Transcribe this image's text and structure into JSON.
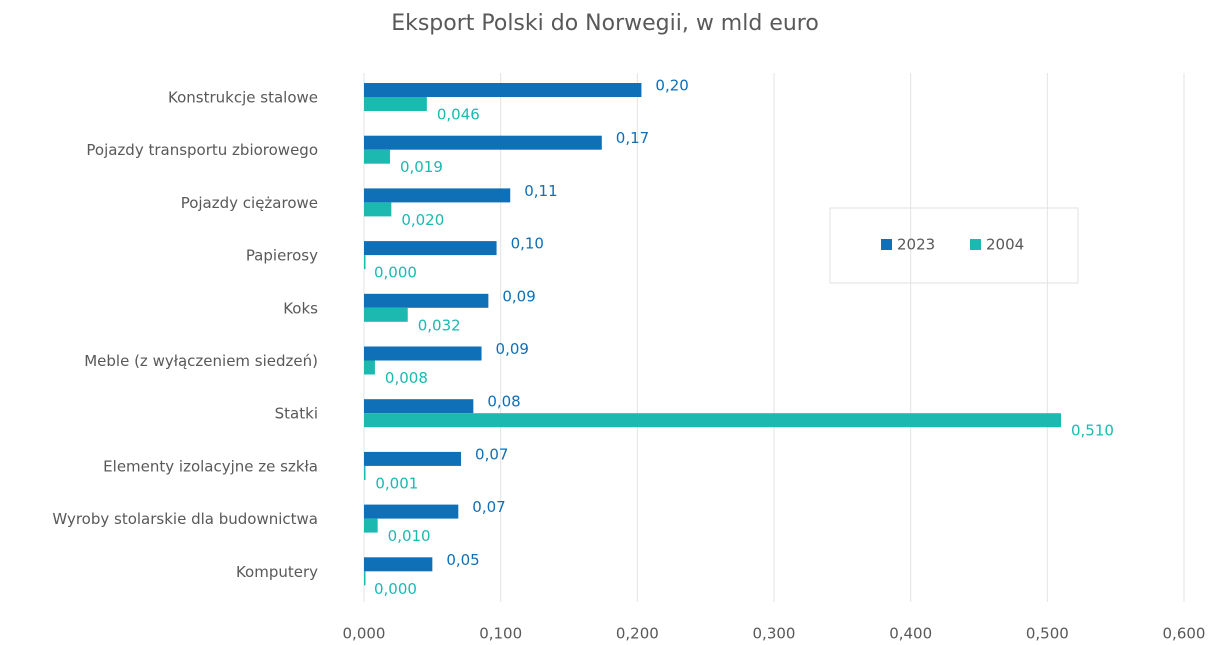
{
  "chart_data": {
    "type": "bar",
    "orientation": "horizontal",
    "title": "Eksport Polski do Norwegii, w mld euro",
    "categories": [
      "Konstrukcje stalowe",
      "Pojazdy transportu zbiorowego",
      "Pojazdy ciężarowe",
      "Papierosy",
      "Koks",
      "Meble (z wyłączeniem siedzeń)",
      "Statki",
      "Elementy izolacyjne ze szkła",
      "Wyroby stolarskie dla budownictwa",
      "Komputery"
    ],
    "series": [
      {
        "name": "2023",
        "color": "#0f6fb7",
        "values": [
          0.203,
          0.174,
          0.107,
          0.097,
          0.091,
          0.086,
          0.08,
          0.071,
          0.069,
          0.05
        ],
        "value_labels": [
          "0,20",
          "0,17",
          "0,11",
          "0,10",
          "0,09",
          "0,09",
          "0,08",
          "0,07",
          "0,07",
          "0,05"
        ]
      },
      {
        "name": "2004",
        "color": "#1bb9b0",
        "values": [
          0.046,
          0.019,
          0.02,
          0.0,
          0.032,
          0.008,
          0.51,
          0.001,
          0.01,
          0.0
        ],
        "value_labels": [
          "0,046",
          "0,019",
          "0,020",
          "0,000",
          "0,032",
          "0,008",
          "0,510",
          "0,001",
          "0,010",
          "0,000"
        ]
      }
    ],
    "xlim": [
      0,
      0.6
    ],
    "xticks": [
      {
        "value": 0,
        "label": "0,000"
      },
      {
        "value": 0.1,
        "label": "0,100"
      },
      {
        "value": 0.2,
        "label": "0,200"
      },
      {
        "value": 0.3,
        "label": "0,300"
      },
      {
        "value": 0.4,
        "label": "0,400"
      },
      {
        "value": 0.5,
        "label": "0,500"
      },
      {
        "value": 0.6,
        "label": "0,600"
      }
    ],
    "grid": true
  }
}
